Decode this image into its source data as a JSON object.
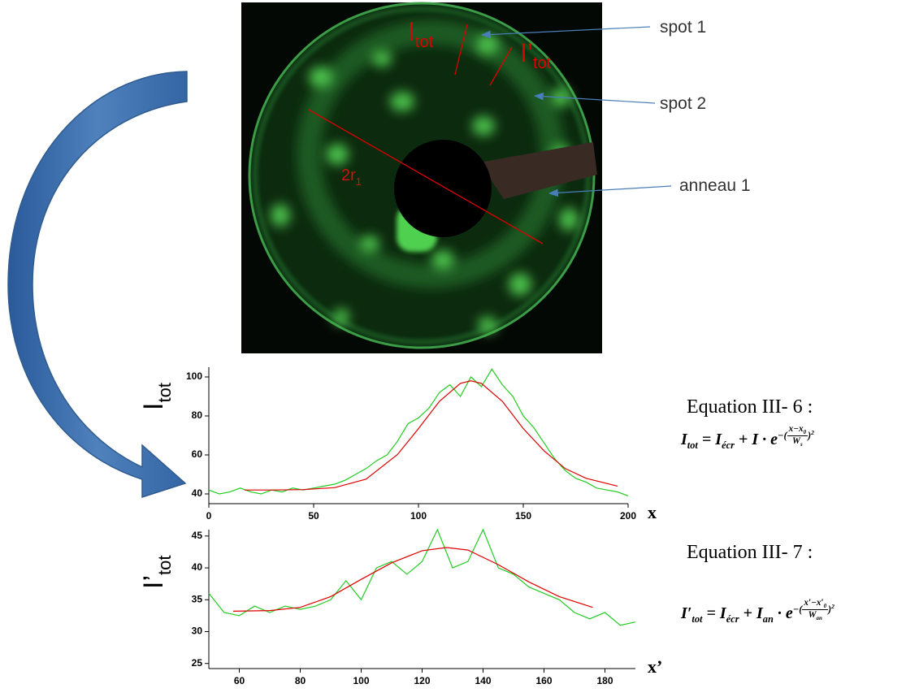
{
  "image": {
    "label_i_tot": [
      "I",
      "tot"
    ],
    "label_i2_tot": [
      "I’",
      "tot"
    ],
    "label_2r1": [
      "2r",
      "1"
    ],
    "arrows": [
      "spot 1",
      "spot 2",
      "anneau 1"
    ]
  },
  "chart_data": [
    {
      "type": "line",
      "y_label": [
        "I",
        "tot"
      ],
      "x_label": "x",
      "xlim": [
        0,
        200
      ],
      "ylim": [
        35,
        105
      ],
      "xticks": [
        0,
        50,
        100,
        150,
        200
      ],
      "yticks": [
        40,
        60,
        80,
        100
      ],
      "series": [
        {
          "color": "#22cc22",
          "x": [
            0,
            5,
            10,
            15,
            20,
            25,
            30,
            35,
            40,
            45,
            50,
            55,
            60,
            65,
            70,
            75,
            80,
            85,
            90,
            95,
            100,
            105,
            110,
            115,
            120,
            125,
            130,
            135,
            140,
            145,
            150,
            155,
            160,
            165,
            170,
            175,
            180,
            185,
            190,
            195,
            200
          ],
          "values": [
            42,
            40,
            41,
            43,
            41,
            40,
            42,
            41,
            43,
            42,
            43,
            44,
            45,
            47,
            50,
            53,
            57,
            60,
            67,
            76,
            79,
            84,
            92,
            96,
            90,
            100,
            95,
            104,
            96,
            90,
            80,
            74,
            66,
            58,
            52,
            48,
            46,
            43,
            42,
            41,
            39
          ]
        },
        {
          "color": "#dd0000",
          "x": [
            17,
            30,
            45,
            60,
            75,
            90,
            100,
            110,
            120,
            125,
            130,
            140,
            150,
            160,
            170,
            180,
            195
          ],
          "values": [
            42,
            42,
            42.2,
            43.2,
            47.6,
            60.2,
            73.5,
            87.5,
            96.7,
            98,
            96.7,
            87.5,
            73.5,
            62,
            53,
            48,
            44
          ]
        }
      ]
    },
    {
      "type": "line",
      "y_label": [
        "I’",
        "tot"
      ],
      "x_label": "x’",
      "xlim": [
        50,
        190
      ],
      "ylim": [
        24.2,
        46
      ],
      "xticks": [
        60,
        80,
        100,
        120,
        140,
        160,
        180
      ],
      "yticks": [
        25,
        30,
        35,
        40,
        45
      ],
      "series": [
        {
          "color": "#22cc22",
          "x": [
            50,
            55,
            60,
            65,
            70,
            75,
            80,
            85,
            90,
            95,
            100,
            105,
            110,
            115,
            120,
            125,
            130,
            135,
            140,
            145,
            150,
            155,
            160,
            165,
            170,
            175,
            180,
            185,
            190
          ],
          "values": [
            36,
            33,
            32.5,
            34,
            33,
            34,
            33.5,
            34,
            35,
            38,
            35,
            40,
            41,
            39,
            41,
            46,
            40,
            41,
            46,
            40,
            39,
            37,
            36,
            35,
            33,
            32,
            33,
            31,
            31.5
          ]
        },
        {
          "color": "#dd0000",
          "x": [
            58,
            70,
            80,
            90,
            100,
            110,
            120,
            128,
            135,
            145,
            155,
            165,
            176
          ],
          "values": [
            33.2,
            33.3,
            33.8,
            35.5,
            38.2,
            40.8,
            42.7,
            43.2,
            42.8,
            40.5,
            37.8,
            35.5,
            33.8
          ]
        }
      ]
    }
  ],
  "equations": [
    {
      "label": "Equation III- 6 :",
      "terms": [
        "I",
        "tot",
        "=",
        "I",
        "écr",
        "+",
        "I",
        "·",
        "e",
        "−(",
        "x−x",
        "0",
        "W",
        "s",
        ")",
        "2"
      ]
    },
    {
      "label": "Equation III- 7 :",
      "terms": [
        "I′",
        "tot",
        "=",
        "I",
        "écr",
        "+",
        "I",
        "an",
        "·",
        "e",
        "−(",
        "x′−x′",
        "0",
        "W",
        "an",
        ")",
        "2"
      ]
    }
  ]
}
